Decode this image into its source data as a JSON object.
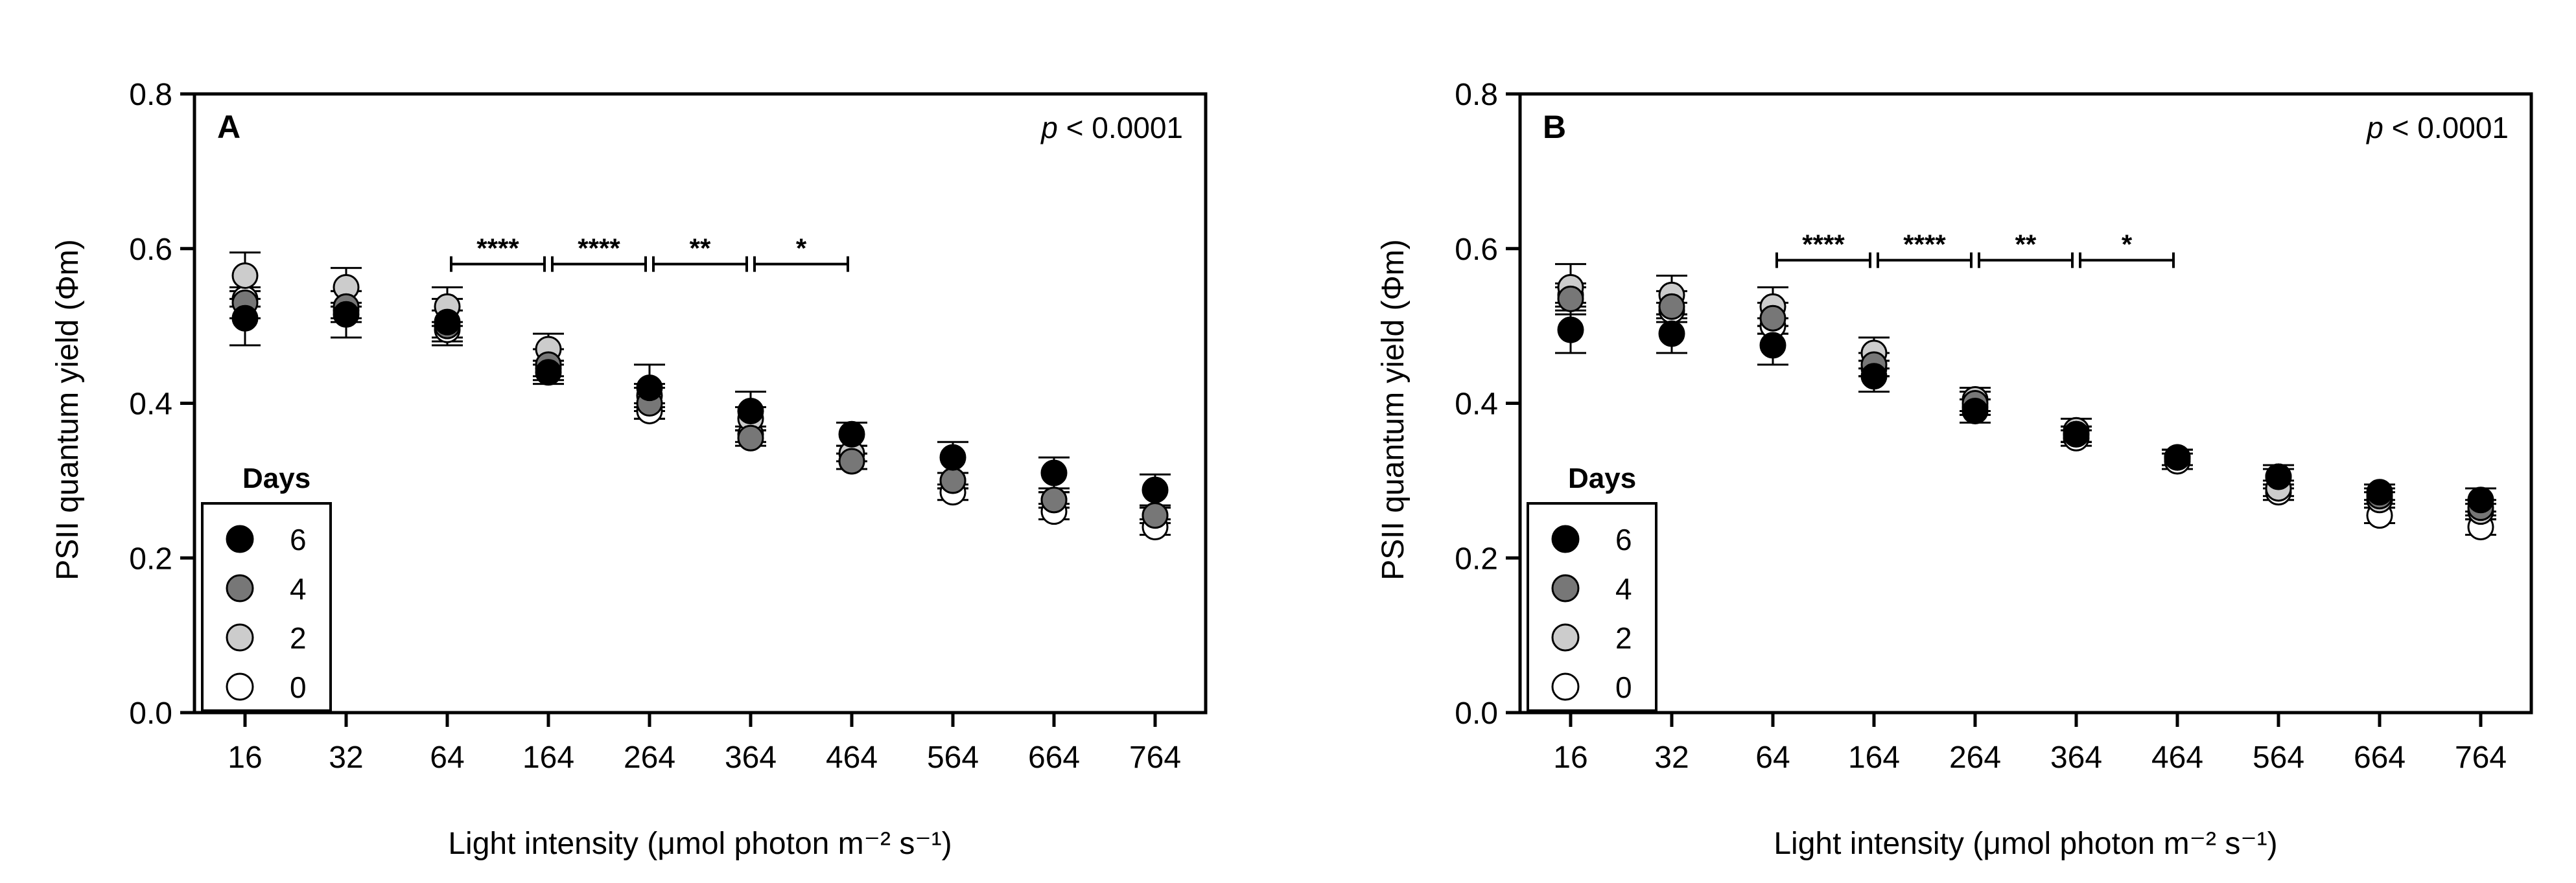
{
  "colors": {
    "day6": "#000000",
    "day4": "#777777",
    "day2": "#cccccc",
    "day0": "#ffffff",
    "stroke": "#000000"
  },
  "chart_data": [
    {
      "type": "scatter",
      "panel_label": "A",
      "annotation": "p < 0.0001",
      "annotation_italic": "p",
      "annotation_rest": " < 0.0001",
      "xlabel": "Light intensity (μmol photon m⁻² s⁻¹)",
      "ylabel": "PSII quantum yield (Φm)",
      "ylim": [
        0.0,
        0.8
      ],
      "yticks": [
        "0.0",
        "0.2",
        "0.4",
        "0.6",
        "0.8"
      ],
      "categories": [
        "16",
        "32",
        "64",
        "164",
        "264",
        "364",
        "464",
        "564",
        "664",
        "764"
      ],
      "legend_title": "Days",
      "series": [
        {
          "name": "6",
          "color_key": "day6",
          "values": [
            0.51,
            0.515,
            0.505,
            0.44,
            0.42,
            0.39,
            0.36,
            0.33,
            0.31,
            0.288
          ],
          "errors": [
            0.035,
            0.03,
            0.03,
            0.015,
            0.03,
            0.025,
            0.015,
            0.02,
            0.02,
            0.02
          ]
        },
        {
          "name": "4",
          "color_key": "day4",
          "values": [
            0.53,
            0.525,
            0.5,
            0.45,
            0.4,
            0.355,
            0.325,
            0.3,
            0.275,
            0.255
          ],
          "errors": [
            0.02,
            0.02,
            0.02,
            0.02,
            0.02,
            0.01,
            0.01,
            0.01,
            0.01,
            0.01
          ]
        },
        {
          "name": "2",
          "color_key": "day2",
          "values": [
            0.565,
            0.55,
            0.525,
            0.47,
            0.41,
            0.38,
            0.335,
            0.3,
            0.275,
            0.255
          ],
          "errors": [
            0.03,
            0.025,
            0.025,
            0.02,
            0.015,
            0.015,
            0.01,
            0.01,
            0.01,
            0.01
          ]
        },
        {
          "name": "0",
          "color_key": "day0",
          "values": [
            0.535,
            0.52,
            0.495,
            0.445,
            0.39,
            0.36,
            0.325,
            0.285,
            0.26,
            0.24
          ],
          "errors": [
            0.01,
            0.01,
            0.01,
            0.01,
            0.01,
            0.01,
            0.01,
            0.01,
            0.01,
            0.01
          ]
        }
      ],
      "significance": [
        {
          "from": "64",
          "to": "164",
          "label": "****",
          "y": 0.58
        },
        {
          "from": "164",
          "to": "264",
          "label": "****",
          "y": 0.58
        },
        {
          "from": "264",
          "to": "364",
          "label": "**",
          "y": 0.58
        },
        {
          "from": "364",
          "to": "464",
          "label": "*",
          "y": 0.58
        }
      ]
    },
    {
      "type": "scatter",
      "panel_label": "B",
      "annotation": "p < 0.0001",
      "annotation_italic": "p",
      "annotation_rest": " < 0.0001",
      "xlabel": "Light intensity (μmol photon m⁻² s⁻¹)",
      "ylabel": "PSII quantum yield (Φm)",
      "ylim": [
        0.0,
        0.8
      ],
      "yticks": [
        "0.0",
        "0.2",
        "0.4",
        "0.6",
        "0.8"
      ],
      "categories": [
        "16",
        "32",
        "64",
        "164",
        "264",
        "364",
        "464",
        "564",
        "664",
        "764"
      ],
      "legend_title": "Days",
      "series": [
        {
          "name": "6",
          "color_key": "day6",
          "values": [
            0.495,
            0.49,
            0.475,
            0.435,
            0.39,
            0.36,
            0.33,
            0.305,
            0.285,
            0.275
          ],
          "errors": [
            0.03,
            0.025,
            0.025,
            0.02,
            0.015,
            0.01,
            0.01,
            0.015,
            0.01,
            0.015
          ]
        },
        {
          "name": "4",
          "color_key": "day4",
          "values": [
            0.535,
            0.525,
            0.51,
            0.45,
            0.4,
            0.36,
            0.33,
            0.305,
            0.28,
            0.265
          ],
          "errors": [
            0.02,
            0.02,
            0.02,
            0.015,
            0.015,
            0.01,
            0.01,
            0.01,
            0.01,
            0.01
          ]
        },
        {
          "name": "2",
          "color_key": "day2",
          "values": [
            0.55,
            0.54,
            0.525,
            0.465,
            0.405,
            0.365,
            0.33,
            0.29,
            0.275,
            0.26
          ],
          "errors": [
            0.03,
            0.025,
            0.025,
            0.02,
            0.015,
            0.015,
            0.01,
            0.01,
            0.01,
            0.01
          ]
        },
        {
          "name": "0",
          "color_key": "day0",
          "values": [
            0.54,
            0.52,
            0.5,
            0.445,
            0.395,
            0.355,
            0.325,
            0.285,
            0.255,
            0.24
          ],
          "errors": [
            0.01,
            0.01,
            0.01,
            0.01,
            0.01,
            0.01,
            0.01,
            0.01,
            0.01,
            0.01
          ]
        }
      ],
      "significance": [
        {
          "from": "64",
          "to": "164",
          "label": "****",
          "y": 0.585
        },
        {
          "from": "164",
          "to": "264",
          "label": "****",
          "y": 0.585
        },
        {
          "from": "264",
          "to": "364",
          "label": "**",
          "y": 0.585
        },
        {
          "from": "364",
          "to": "464",
          "label": "*",
          "y": 0.585
        }
      ]
    }
  ]
}
